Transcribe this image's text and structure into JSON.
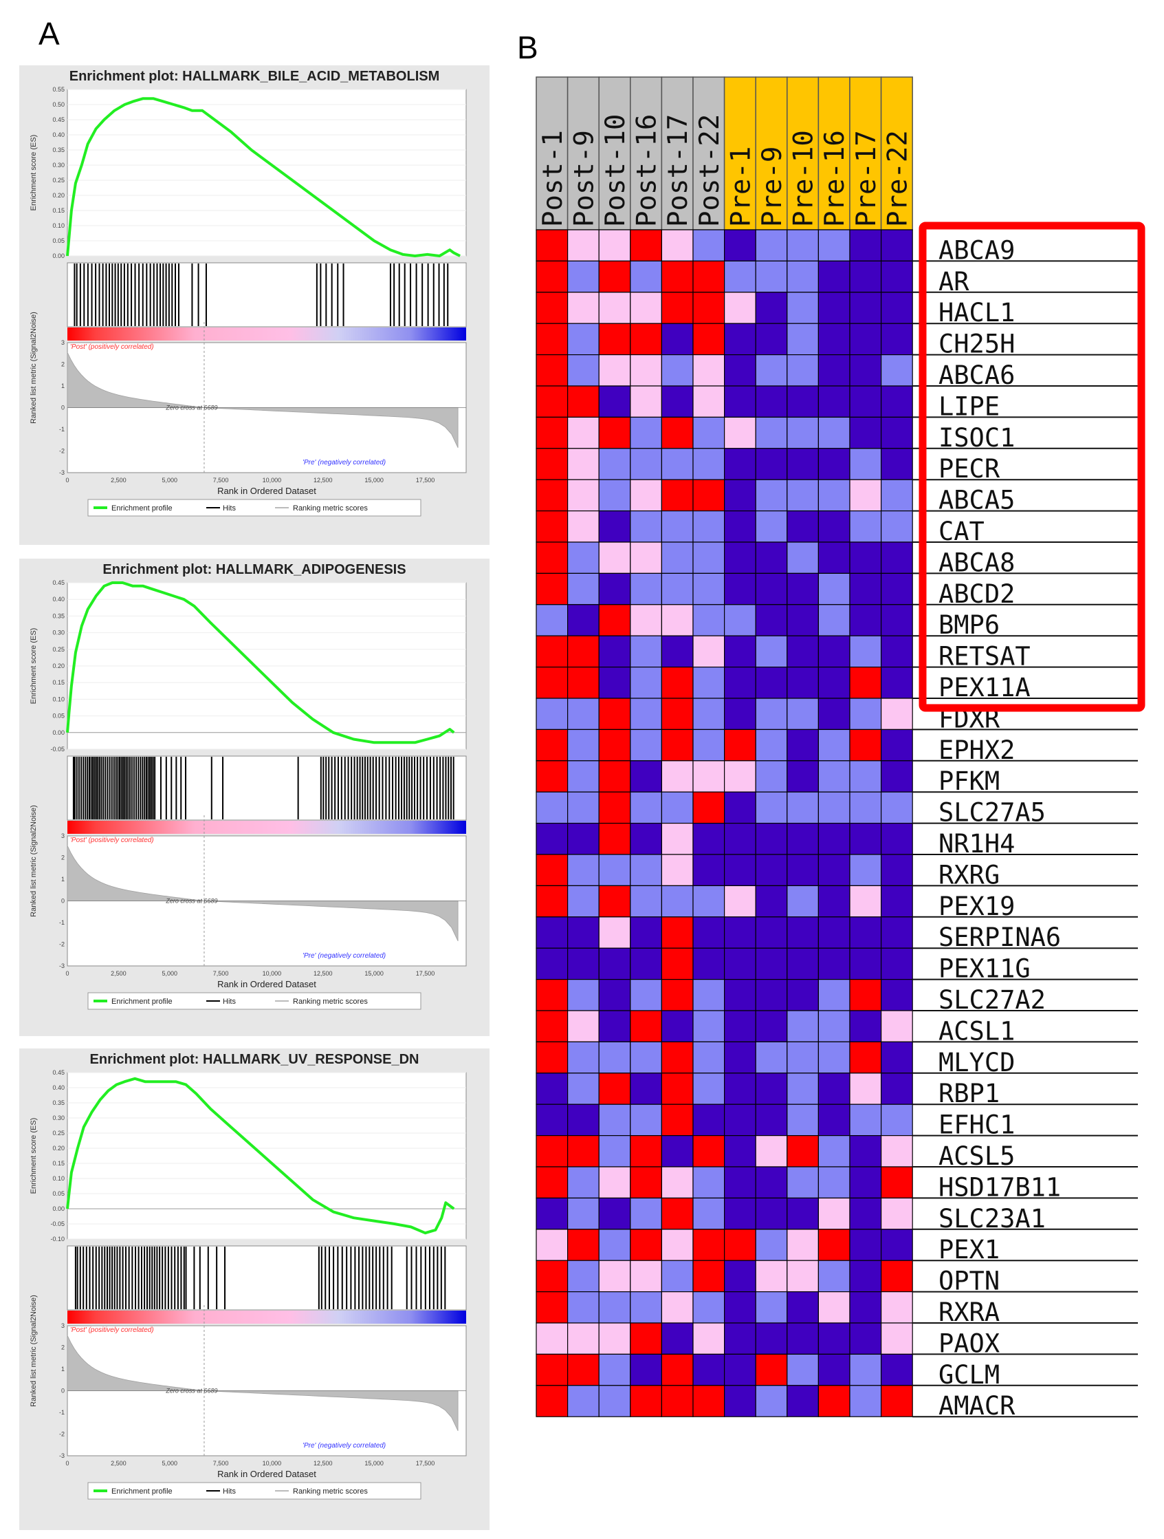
{
  "panel_labels": {
    "a": "A",
    "b": "B"
  },
  "colors": {
    "es_line": "#22ee22",
    "bar_red": "#ff0000",
    "bar_pink": "#ffbfe6",
    "bar_blue": "#0000e0",
    "metric_fill": "#bdbdbd",
    "post_text": "#ff3030",
    "pre_text": "#3030ff",
    "post_header": "#c0c0c0",
    "pre_header": "#ffc500",
    "box": "#ff0000"
  },
  "chart_data": [
    {
      "type": "line",
      "title": "Enrichment plot: HALLMARK_BILE_ACID_METABOLISM",
      "ylabel": "Enrichment score (ES)",
      "ylim": [
        0,
        0.55
      ],
      "yticks": [
        0.55,
        0.5,
        0.45,
        0.4,
        0.35,
        0.3,
        0.25,
        0.2,
        0.15,
        0.1,
        0.05,
        0.0
      ],
      "ytick_labels": [
        "0.55",
        "0.50",
        "0.45",
        "0.40",
        "0.35",
        "0.30",
        "0.25",
        "0.20",
        "0.15",
        "0.10",
        "0.05",
        "0.00"
      ],
      "x": [
        0,
        80,
        200,
        400,
        700,
        1000,
        1400,
        1800,
        2300,
        2800,
        3200,
        3700,
        4200,
        4700,
        5200,
        5700,
        6100,
        6600,
        7000,
        8000,
        9000,
        10000,
        11000,
        12000,
        13000,
        14000,
        15000,
        15800,
        16400,
        17000,
        17600,
        18200,
        18700,
        18900,
        19200
      ],
      "es": [
        0.0,
        0.06,
        0.15,
        0.24,
        0.3,
        0.37,
        0.42,
        0.45,
        0.48,
        0.5,
        0.51,
        0.52,
        0.52,
        0.51,
        0.5,
        0.49,
        0.48,
        0.48,
        0.46,
        0.41,
        0.35,
        0.3,
        0.25,
        0.2,
        0.15,
        0.1,
        0.05,
        0.02,
        0.005,
        0.0,
        0.005,
        0.0,
        0.02,
        0.01,
        0.0
      ],
      "hit_groups": [
        [
          350,
          5500,
          32
        ],
        [
          6100,
          6800,
          3
        ],
        [
          12200,
          13500,
          6
        ],
        [
          15800,
          18600,
          12
        ]
      ],
      "metric_ylabel": "Ranked list metric (Signal2Noise)",
      "metric_ylim": [
        -3,
        3
      ],
      "metric_yticks": [
        3,
        2,
        1,
        0,
        -1,
        -2,
        -3
      ],
      "metric_ytick_labels": [
        "3",
        "2",
        "1",
        "0",
        "-1",
        "-2",
        "-3"
      ],
      "xlabel": "Rank in Ordered Dataset",
      "xlim": [
        0,
        19500
      ],
      "xticks": [
        0,
        2500,
        5000,
        7500,
        10000,
        12500,
        15000,
        17500
      ],
      "xtick_labels": [
        "0",
        "2,500",
        "5,000",
        "7,500",
        "10,000",
        "12,500",
        "15,000",
        "17,500"
      ],
      "zero_cross": 6689,
      "zero_cross_label": "Zero cross at 6689",
      "post_label": "'Post' (positively correlated)",
      "pre_label": "'Pre' (negatively correlated)",
      "legend": [
        "Enrichment profile",
        "Hits",
        "Ranking metric scores"
      ]
    },
    {
      "type": "line",
      "title": "Enrichment plot: HALLMARK_ADIPOGENESIS",
      "ylabel": "Enrichment score (ES)",
      "ylim": [
        -0.05,
        0.45
      ],
      "yticks": [
        0.45,
        0.4,
        0.35,
        0.3,
        0.25,
        0.2,
        0.15,
        0.1,
        0.05,
        0.0,
        -0.05
      ],
      "ytick_labels": [
        "0.45",
        "0.40",
        "0.35",
        "0.30",
        "0.25",
        "0.20",
        "0.15",
        "0.10",
        "0.05",
        "0.00",
        "-0.05"
      ],
      "x": [
        0,
        80,
        200,
        400,
        700,
        1000,
        1400,
        1800,
        2200,
        2700,
        3200,
        3700,
        4200,
        4700,
        5200,
        5700,
        6200,
        7000,
        8000,
        9000,
        10000,
        11000,
        12000,
        13000,
        14000,
        15000,
        16000,
        17000,
        17600,
        18200,
        18700,
        18900
      ],
      "es": [
        0.0,
        0.06,
        0.14,
        0.24,
        0.32,
        0.37,
        0.41,
        0.44,
        0.45,
        0.45,
        0.44,
        0.44,
        0.43,
        0.42,
        0.41,
        0.4,
        0.38,
        0.33,
        0.27,
        0.21,
        0.15,
        0.09,
        0.04,
        0.0,
        -0.02,
        -0.03,
        -0.03,
        -0.03,
        -0.02,
        -0.01,
        0.01,
        0.0
      ],
      "hit_groups": [
        [
          300,
          4300,
          44
        ],
        [
          4500,
          5800,
          6
        ],
        [
          7000,
          7600,
          2
        ],
        [
          11200,
          11400,
          1
        ],
        [
          12400,
          18900,
          46
        ]
      ],
      "metric_ylabel": "Ranked list metric (Signal2Noise)",
      "metric_ylim": [
        -3,
        3
      ],
      "metric_yticks": [
        3,
        2,
        1,
        0,
        -1,
        -2,
        -3
      ],
      "metric_ytick_labels": [
        "3",
        "2",
        "1",
        "0",
        "-1",
        "-2",
        "-3"
      ],
      "xlabel": "Rank in Ordered Dataset",
      "xlim": [
        0,
        19500
      ],
      "xticks": [
        0,
        2500,
        5000,
        7500,
        10000,
        12500,
        15000,
        17500
      ],
      "xtick_labels": [
        "0",
        "2,500",
        "5,000",
        "7,500",
        "10,000",
        "12,500",
        "15,000",
        "17,500"
      ],
      "zero_cross": 6689,
      "zero_cross_label": "Zero cross at 6689",
      "post_label": "'Post' (positively correlated)",
      "pre_label": "'Pre' (negatively correlated)",
      "legend": [
        "Enrichment profile",
        "Hits",
        "Ranking metric scores"
      ]
    },
    {
      "type": "line",
      "title": "Enrichment plot: HALLMARK_UV_RESPONSE_DN",
      "ylabel": "Enrichment score (ES)",
      "ylim": [
        -0.1,
        0.45
      ],
      "yticks": [
        0.45,
        0.4,
        0.35,
        0.3,
        0.25,
        0.2,
        0.15,
        0.1,
        0.05,
        0.0,
        -0.05,
        -0.1
      ],
      "ytick_labels": [
        "0.45",
        "0.40",
        "0.35",
        "0.30",
        "0.25",
        "0.20",
        "0.15",
        "0.10",
        "0.05",
        "0.00",
        "-0.05",
        "-0.10"
      ],
      "x": [
        0,
        80,
        200,
        500,
        800,
        1200,
        1600,
        2000,
        2400,
        2800,
        3300,
        3800,
        4300,
        4800,
        5300,
        5800,
        6300,
        7000,
        8000,
        9000,
        10000,
        11000,
        12000,
        13000,
        14000,
        15000,
        16000,
        16800,
        17500,
        18000,
        18300,
        18500,
        18700,
        18900
      ],
      "es": [
        0.0,
        0.05,
        0.12,
        0.2,
        0.27,
        0.32,
        0.36,
        0.39,
        0.41,
        0.42,
        0.43,
        0.42,
        0.42,
        0.42,
        0.42,
        0.41,
        0.38,
        0.33,
        0.27,
        0.21,
        0.15,
        0.09,
        0.03,
        -0.01,
        -0.03,
        -0.04,
        -0.05,
        -0.06,
        -0.08,
        -0.07,
        -0.03,
        0.02,
        0.01,
        0.0
      ],
      "hit_groups": [
        [
          400,
          5800,
          40
        ],
        [
          6200,
          7700,
          5
        ],
        [
          12300,
          15900,
          20
        ],
        [
          16600,
          18500,
          10
        ]
      ],
      "metric_ylabel": "Ranked list metric (Signal2Noise)",
      "metric_ylim": [
        -3,
        3
      ],
      "metric_yticks": [
        3,
        2,
        1,
        0,
        -1,
        -2,
        -3
      ],
      "metric_ytick_labels": [
        "3",
        "2",
        "1",
        "0",
        "-1",
        "-2",
        "-3"
      ],
      "xlabel": "Rank in Ordered Dataset",
      "xlim": [
        0,
        19500
      ],
      "xticks": [
        0,
        2500,
        5000,
        7500,
        10000,
        12500,
        15000,
        17500
      ],
      "xtick_labels": [
        "0",
        "2,500",
        "5,000",
        "7,500",
        "10,000",
        "12,500",
        "15,000",
        "17,500"
      ],
      "zero_cross": 6689,
      "zero_cross_label": "Zero cross at 6689",
      "post_label": "'Post' (positively correlated)",
      "pre_label": "'Pre' (negatively correlated)",
      "legend": [
        "Enrichment profile",
        "Hits",
        "Ranking metric scores"
      ]
    },
    {
      "type": "heatmap",
      "columns": [
        "Post-1",
        "Post-9",
        "Post-10",
        "Post-16",
        "Post-17",
        "Post-22",
        "Pre-1",
        "Pre-9",
        "Pre-10",
        "Pre-16",
        "Pre-17",
        "Pre-22"
      ],
      "column_groups": [
        "Post",
        "Post",
        "Post",
        "Post",
        "Post",
        "Post",
        "Pre",
        "Pre",
        "Pre",
        "Pre",
        "Pre",
        "Pre"
      ],
      "rows": [
        "ABCA9",
        "AR",
        "HACL1",
        "CH25H",
        "ABCA6",
        "LIPE",
        "ISOC1",
        "PECR",
        "ABCA5",
        "CAT",
        "ABCA8",
        "ABCD2",
        "BMP6",
        "RETSAT",
        "PEX11A",
        "FDXR",
        "EPHX2",
        "PFKM",
        "SLC27A5",
        "NR1H4",
        "RXRG",
        "PEX19",
        "SERPINA6",
        "PEX11G",
        "SLC27A2",
        "ACSL1",
        "MLYCD",
        "RBP1",
        "EFHC1",
        "ACSL5",
        "HSD17B11",
        "SLC23A1",
        "PEX1",
        "OPTN",
        "RXRA",
        "PAOX",
        "GCLM",
        "AMACR"
      ],
      "highlighted_rows": [
        "ABCA9",
        "AR",
        "HACL1",
        "CH25H",
        "ABCA6",
        "LIPE",
        "ISOC1",
        "PECR",
        "ABCA5",
        "CAT",
        "ABCA8",
        "ABCD2",
        "BMP6",
        "RETSAT",
        "PEX11A"
      ],
      "scale": "3 = high (red), 0 = low (blue)",
      "values": [
        [
          3,
          2,
          2,
          3,
          2,
          1,
          0,
          1,
          1,
          1,
          0,
          0
        ],
        [
          3,
          1,
          3,
          1,
          3,
          3,
          1,
          1,
          1,
          0,
          0,
          0
        ],
        [
          3,
          2,
          2,
          2,
          3,
          3,
          2,
          0,
          1,
          0,
          0,
          0
        ],
        [
          3,
          1,
          3,
          3,
          0,
          3,
          0,
          0,
          1,
          0,
          0,
          0
        ],
        [
          3,
          1,
          2,
          2,
          1,
          2,
          0,
          1,
          1,
          0,
          0,
          1
        ],
        [
          3,
          3,
          0,
          2,
          0,
          2,
          0,
          0,
          0,
          0,
          0,
          0
        ],
        [
          3,
          2,
          3,
          1,
          3,
          1,
          2,
          1,
          1,
          1,
          0,
          0
        ],
        [
          3,
          2,
          1,
          1,
          1,
          1,
          0,
          0,
          0,
          0,
          1,
          0
        ],
        [
          3,
          2,
          1,
          2,
          3,
          3,
          0,
          1,
          1,
          1,
          2,
          1
        ],
        [
          3,
          2,
          0,
          1,
          1,
          1,
          0,
          1,
          0,
          0,
          1,
          1
        ],
        [
          3,
          1,
          2,
          2,
          1,
          1,
          0,
          0,
          1,
          0,
          0,
          0
        ],
        [
          3,
          1,
          0,
          1,
          1,
          1,
          0,
          0,
          0,
          1,
          0,
          0
        ],
        [
          1,
          0,
          3,
          2,
          2,
          1,
          1,
          0,
          0,
          1,
          0,
          0
        ],
        [
          3,
          3,
          0,
          1,
          0,
          2,
          0,
          1,
          0,
          0,
          1,
          0
        ],
        [
          3,
          3,
          0,
          1,
          3,
          1,
          0,
          0,
          0,
          0,
          3,
          0
        ],
        [
          1,
          1,
          3,
          1,
          3,
          1,
          0,
          1,
          1,
          0,
          1,
          2
        ],
        [
          3,
          1,
          3,
          1,
          3,
          1,
          3,
          1,
          0,
          1,
          3,
          0
        ],
        [
          3,
          1,
          3,
          0,
          2,
          2,
          2,
          1,
          0,
          1,
          1,
          0
        ],
        [
          1,
          1,
          3,
          1,
          1,
          3,
          0,
          1,
          1,
          1,
          1,
          1
        ],
        [
          0,
          0,
          3,
          0,
          2,
          0,
          0,
          0,
          0,
          0,
          0,
          0
        ],
        [
          3,
          1,
          1,
          1,
          2,
          0,
          0,
          0,
          0,
          0,
          1,
          0
        ],
        [
          3,
          1,
          3,
          1,
          1,
          1,
          2,
          0,
          1,
          0,
          2,
          0
        ],
        [
          0,
          0,
          2,
          0,
          3,
          0,
          0,
          0,
          0,
          0,
          0,
          0
        ],
        [
          0,
          0,
          0,
          0,
          3,
          0,
          0,
          0,
          0,
          0,
          0,
          0
        ],
        [
          3,
          1,
          0,
          1,
          3,
          1,
          0,
          0,
          0,
          1,
          3,
          0
        ],
        [
          3,
          2,
          0,
          3,
          0,
          1,
          0,
          0,
          1,
          1,
          0,
          2
        ],
        [
          3,
          1,
          1,
          1,
          3,
          1,
          0,
          1,
          1,
          1,
          3,
          0
        ],
        [
          0,
          1,
          3,
          0,
          3,
          1,
          0,
          0,
          1,
          0,
          2,
          0
        ],
        [
          0,
          0,
          1,
          1,
          3,
          0,
          0,
          0,
          1,
          0,
          1,
          1
        ],
        [
          3,
          3,
          1,
          3,
          0,
          3,
          0,
          2,
          3,
          1,
          0,
          2
        ],
        [
          3,
          1,
          2,
          3,
          2,
          1,
          0,
          0,
          1,
          1,
          0,
          3
        ],
        [
          0,
          1,
          0,
          1,
          3,
          1,
          0,
          0,
          0,
          2,
          0,
          2
        ],
        [
          2,
          3,
          1,
          3,
          2,
          3,
          3,
          1,
          2,
          3,
          0,
          0
        ],
        [
          3,
          1,
          2,
          2,
          1,
          3,
          0,
          2,
          2,
          1,
          0,
          3
        ],
        [
          3,
          1,
          1,
          1,
          2,
          1,
          0,
          1,
          0,
          2,
          0,
          2
        ],
        [
          2,
          2,
          2,
          3,
          0,
          2,
          0,
          0,
          0,
          0,
          0,
          2
        ],
        [
          3,
          3,
          1,
          0,
          3,
          0,
          0,
          3,
          1,
          0,
          1,
          0
        ],
        [
          3,
          1,
          1,
          3,
          3,
          3,
          0,
          1,
          0,
          3,
          1,
          3
        ]
      ]
    }
  ]
}
